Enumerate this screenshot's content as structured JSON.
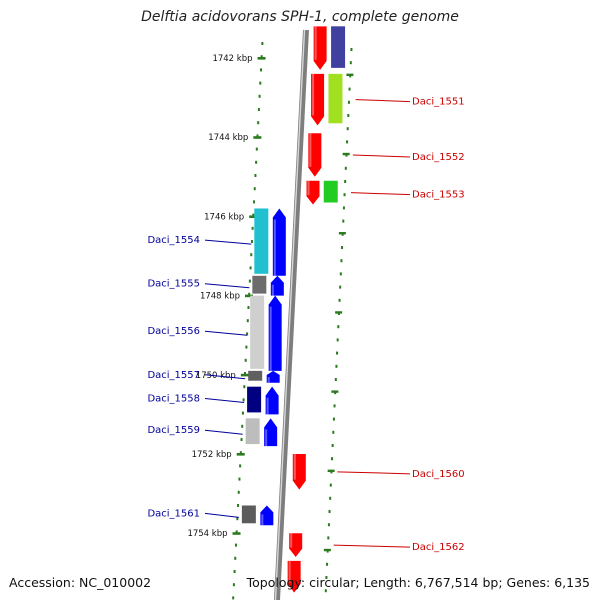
{
  "title": "Delftia acidovorans SPH-1, complete genome",
  "footer": {
    "accession": "Accession: NC_010002",
    "summary": "Topology: circular; Length: 6,767,514 bp; Genes: 6,135"
  },
  "ticks": [
    {
      "label": "1742 kbp",
      "kb": 1742
    },
    {
      "label": "1744 kbp",
      "kb": 1744
    },
    {
      "label": "1746 kbp",
      "kb": 1746
    },
    {
      "label": "1748 kbp",
      "kb": 1748
    },
    {
      "label": "1750 kbp",
      "kb": 1750
    },
    {
      "label": "1752 kbp",
      "kb": 1752
    },
    {
      "label": "1754 kbp",
      "kb": 1754
    }
  ],
  "colors": {
    "forward": "#0000ff",
    "reverse": "#ff0000",
    "label_forward": "#00009a",
    "label_reverse": "#cc0000",
    "tick": "#2a7a1e",
    "backbone": "#8a8a8a"
  },
  "genes": [
    {
      "label": "",
      "strand": "-",
      "start_kb": 1741.2,
      "end_kb": 1742.3
    },
    {
      "label": "Daci_1551",
      "strand": "-",
      "start_kb": 1742.4,
      "end_kb": 1743.7
    },
    {
      "label": "Daci_1552",
      "strand": "-",
      "start_kb": 1743.9,
      "end_kb": 1745.0
    },
    {
      "label": "Daci_1553",
      "strand": "-",
      "start_kb": 1745.1,
      "end_kb": 1745.7
    },
    {
      "label": "Daci_1554",
      "strand": "+",
      "start_kb": 1745.8,
      "end_kb": 1747.5
    },
    {
      "label": "Daci_1555",
      "strand": "+",
      "start_kb": 1747.5,
      "end_kb": 1748.0
    },
    {
      "label": "Daci_1556",
      "strand": "+",
      "start_kb": 1748.0,
      "end_kb": 1749.9
    },
    {
      "label": "Daci_1557",
      "strand": "+",
      "start_kb": 1749.9,
      "end_kb": 1750.2
    },
    {
      "label": "Daci_1558",
      "strand": "+",
      "start_kb": 1750.3,
      "end_kb": 1751.0
    },
    {
      "label": "Daci_1559",
      "strand": "+",
      "start_kb": 1751.1,
      "end_kb": 1751.8
    },
    {
      "label": "Daci_1560",
      "strand": "-",
      "start_kb": 1752.0,
      "end_kb": 1752.9
    },
    {
      "label": "Daci_1561",
      "strand": "+",
      "start_kb": 1753.3,
      "end_kb": 1753.8
    },
    {
      "label": "Daci_1562",
      "strand": "-",
      "start_kb": 1754.0,
      "end_kb": 1754.6
    },
    {
      "label": "",
      "strand": "-",
      "start_kb": 1754.7,
      "end_kb": 1755.5
    }
  ]
}
